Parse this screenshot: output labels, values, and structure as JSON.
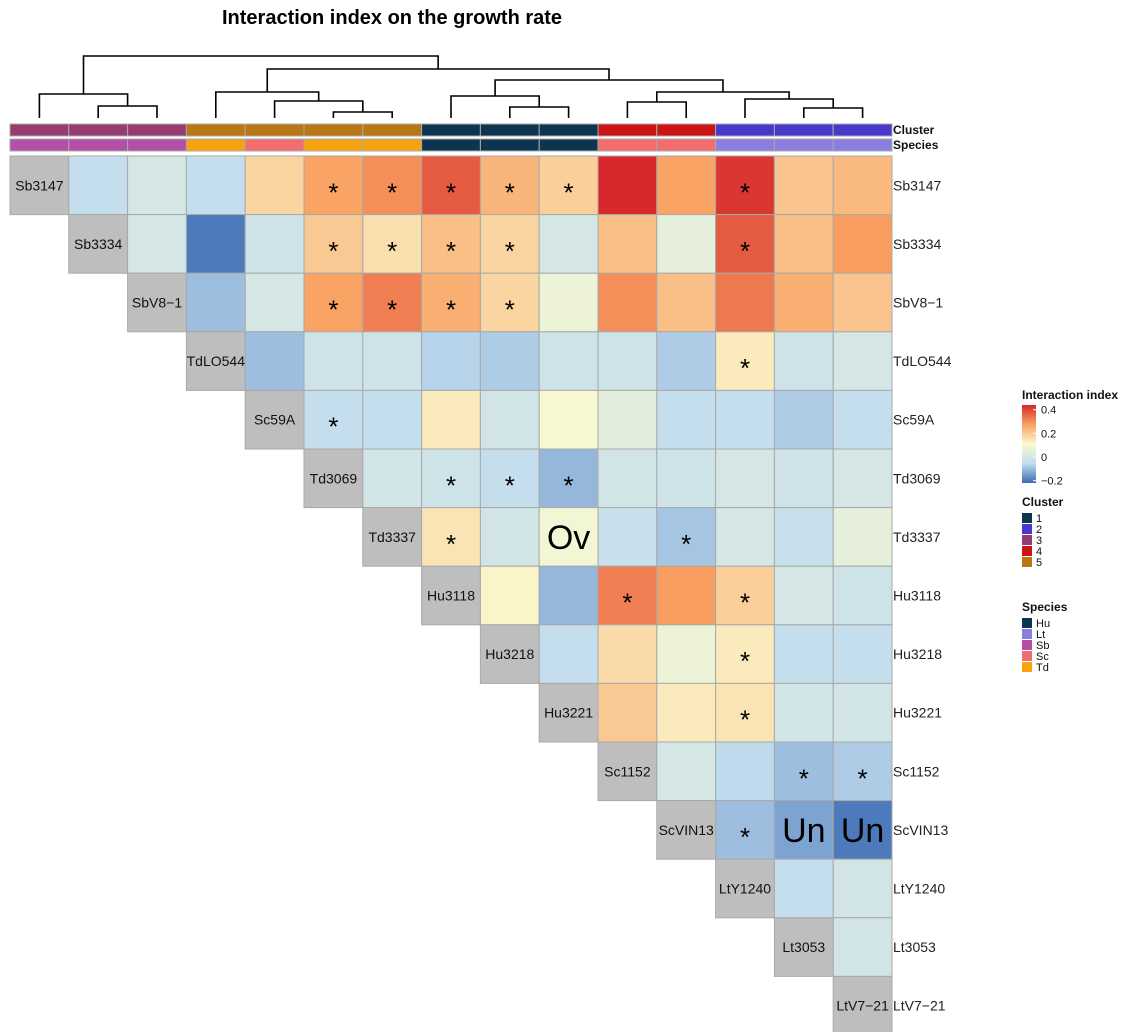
{
  "chart_data": {
    "type": "heatmap",
    "title": "Interaction index on the growth rate",
    "strains": [
      "Sb3147",
      "Sb3334",
      "SbV8−1",
      "TdLO544",
      "Sc59A",
      "Td3069",
      "Td3337",
      "Hu3118",
      "Hu3218",
      "Hu3221",
      "Sc1152",
      "ScVIN13",
      "LtY1240",
      "Lt3053",
      "LtV7−21"
    ],
    "cluster": [
      3,
      3,
      3,
      5,
      5,
      5,
      5,
      1,
      1,
      1,
      4,
      4,
      2,
      2,
      2
    ],
    "species": [
      "Sb",
      "Sb",
      "Sb",
      "Td",
      "Sc",
      "Td",
      "Td",
      "Hu",
      "Hu",
      "Hu",
      "Sc",
      "Sc",
      "Lt",
      "Lt",
      "Lt"
    ],
    "annotation_labels": {
      "cluster": "Cluster",
      "species": "Species"
    },
    "values": [
      [
        null,
        -0.05,
        0.0,
        -0.05,
        0.18,
        0.27,
        0.3,
        0.37,
        0.24,
        0.19,
        0.44,
        0.27,
        0.42,
        0.21,
        0.23
      ],
      [
        null,
        null,
        0.0,
        -0.2,
        -0.02,
        0.2,
        0.16,
        0.22,
        0.18,
        0.0,
        0.22,
        0.05,
        0.37,
        0.22,
        0.28
      ],
      [
        null,
        null,
        null,
        -0.1,
        0.0,
        0.27,
        0.32,
        0.25,
        0.18,
        0.07,
        0.3,
        0.22,
        0.33,
        0.25,
        0.21
      ],
      [
        null,
        null,
        null,
        null,
        -0.1,
        -0.02,
        -0.02,
        -0.07,
        -0.08,
        -0.02,
        -0.02,
        -0.08,
        0.14,
        -0.02,
        0.0
      ],
      [
        null,
        null,
        null,
        null,
        null,
        -0.05,
        -0.05,
        0.14,
        -0.01,
        0.1,
        0.04,
        -0.05,
        -0.05,
        -0.08,
        -0.05
      ],
      [
        null,
        null,
        null,
        null,
        null,
        null,
        -0.01,
        -0.02,
        -0.05,
        -0.11,
        -0.01,
        -0.02,
        0.0,
        -0.02,
        0.0
      ],
      [
        null,
        null,
        null,
        null,
        null,
        null,
        null,
        0.15,
        -0.01,
        0.09,
        -0.04,
        -0.09,
        0.0,
        -0.04,
        0.05
      ],
      [
        null,
        null,
        null,
        null,
        null,
        null,
        null,
        null,
        0.12,
        -0.11,
        0.32,
        0.28,
        0.19,
        0.0,
        -0.02
      ],
      [
        null,
        null,
        null,
        null,
        null,
        null,
        null,
        null,
        null,
        -0.05,
        0.17,
        0.07,
        0.14,
        -0.05,
        -0.05
      ],
      [
        null,
        null,
        null,
        null,
        null,
        null,
        null,
        null,
        null,
        null,
        0.2,
        0.14,
        0.15,
        -0.01,
        -0.01
      ],
      [
        null,
        null,
        null,
        null,
        null,
        null,
        null,
        null,
        null,
        null,
        null,
        0.0,
        -0.06,
        -0.1,
        -0.08
      ],
      [
        null,
        null,
        null,
        null,
        null,
        null,
        null,
        null,
        null,
        null,
        null,
        null,
        -0.1,
        -0.14,
        -0.2
      ],
      [
        null,
        null,
        null,
        null,
        null,
        null,
        null,
        null,
        null,
        null,
        null,
        null,
        null,
        -0.05,
        -0.01
      ],
      [
        null,
        null,
        null,
        null,
        null,
        null,
        null,
        null,
        null,
        null,
        null,
        null,
        null,
        null,
        -0.01
      ],
      [
        null,
        null,
        null,
        null,
        null,
        null,
        null,
        null,
        null,
        null,
        null,
        null,
        null,
        null,
        null
      ]
    ],
    "marks": [
      {
        "row": 0,
        "col": 5,
        "text": "*"
      },
      {
        "row": 0,
        "col": 6,
        "text": "*"
      },
      {
        "row": 0,
        "col": 7,
        "text": "*"
      },
      {
        "row": 0,
        "col": 8,
        "text": "*"
      },
      {
        "row": 0,
        "col": 9,
        "text": "*"
      },
      {
        "row": 0,
        "col": 12,
        "text": "*"
      },
      {
        "row": 1,
        "col": 5,
        "text": "*"
      },
      {
        "row": 1,
        "col": 6,
        "text": "*"
      },
      {
        "row": 1,
        "col": 7,
        "text": "*"
      },
      {
        "row": 1,
        "col": 8,
        "text": "*"
      },
      {
        "row": 1,
        "col": 12,
        "text": "*"
      },
      {
        "row": 2,
        "col": 5,
        "text": "*"
      },
      {
        "row": 2,
        "col": 6,
        "text": "*"
      },
      {
        "row": 2,
        "col": 7,
        "text": "*"
      },
      {
        "row": 2,
        "col": 8,
        "text": "*"
      },
      {
        "row": 3,
        "col": 12,
        "text": "*"
      },
      {
        "row": 4,
        "col": 5,
        "text": "*"
      },
      {
        "row": 5,
        "col": 7,
        "text": "*"
      },
      {
        "row": 5,
        "col": 8,
        "text": "*"
      },
      {
        "row": 5,
        "col": 9,
        "text": "*"
      },
      {
        "row": 6,
        "col": 7,
        "text": "*"
      },
      {
        "row": 6,
        "col": 9,
        "text": "Ov"
      },
      {
        "row": 6,
        "col": 11,
        "text": "*"
      },
      {
        "row": 7,
        "col": 10,
        "text": "*"
      },
      {
        "row": 7,
        "col": 12,
        "text": "*"
      },
      {
        "row": 8,
        "col": 12,
        "text": "*"
      },
      {
        "row": 9,
        "col": 12,
        "text": "*"
      },
      {
        "row": 10,
        "col": 13,
        "text": "*"
      },
      {
        "row": 10,
        "col": 14,
        "text": "*"
      },
      {
        "row": 11,
        "col": 12,
        "text": "*"
      },
      {
        "row": 11,
        "col": 13,
        "text": "Un"
      },
      {
        "row": 11,
        "col": 14,
        "text": "Un"
      }
    ],
    "legend": {
      "title": "Interaction index",
      "ticks": [
        "0.4",
        "0.2",
        "0",
        "−0.2"
      ],
      "tick_values": [
        0.4,
        0.2,
        0,
        -0.2
      ],
      "range": [
        -0.22,
        0.44
      ],
      "cluster_title": "Cluster",
      "cluster_items": [
        {
          "label": "1",
          "color": "#0d3550"
        },
        {
          "label": "2",
          "color": "#4639cc"
        },
        {
          "label": "3",
          "color": "#963c71"
        },
        {
          "label": "4",
          "color": "#cc1414"
        },
        {
          "label": "5",
          "color": "#b97814"
        }
      ],
      "species_title": "Species",
      "species_items": [
        {
          "label": "Hu",
          "color": "#0d3550"
        },
        {
          "label": "Lt",
          "color": "#8a7fe0"
        },
        {
          "label": "Sb",
          "color": "#b44fa6"
        },
        {
          "label": "Sc",
          "color": "#f26d6d"
        },
        {
          "label": "Td",
          "color": "#f7a20f"
        }
      ]
    },
    "colors": {
      "diagonal_cell": "#bebebe",
      "cell_border": "#a9a9a9",
      "scale": [
        "#3c6cb4",
        "#c2ddee",
        "#fafad0",
        "#f9a161",
        "#d7282c"
      ]
    }
  }
}
